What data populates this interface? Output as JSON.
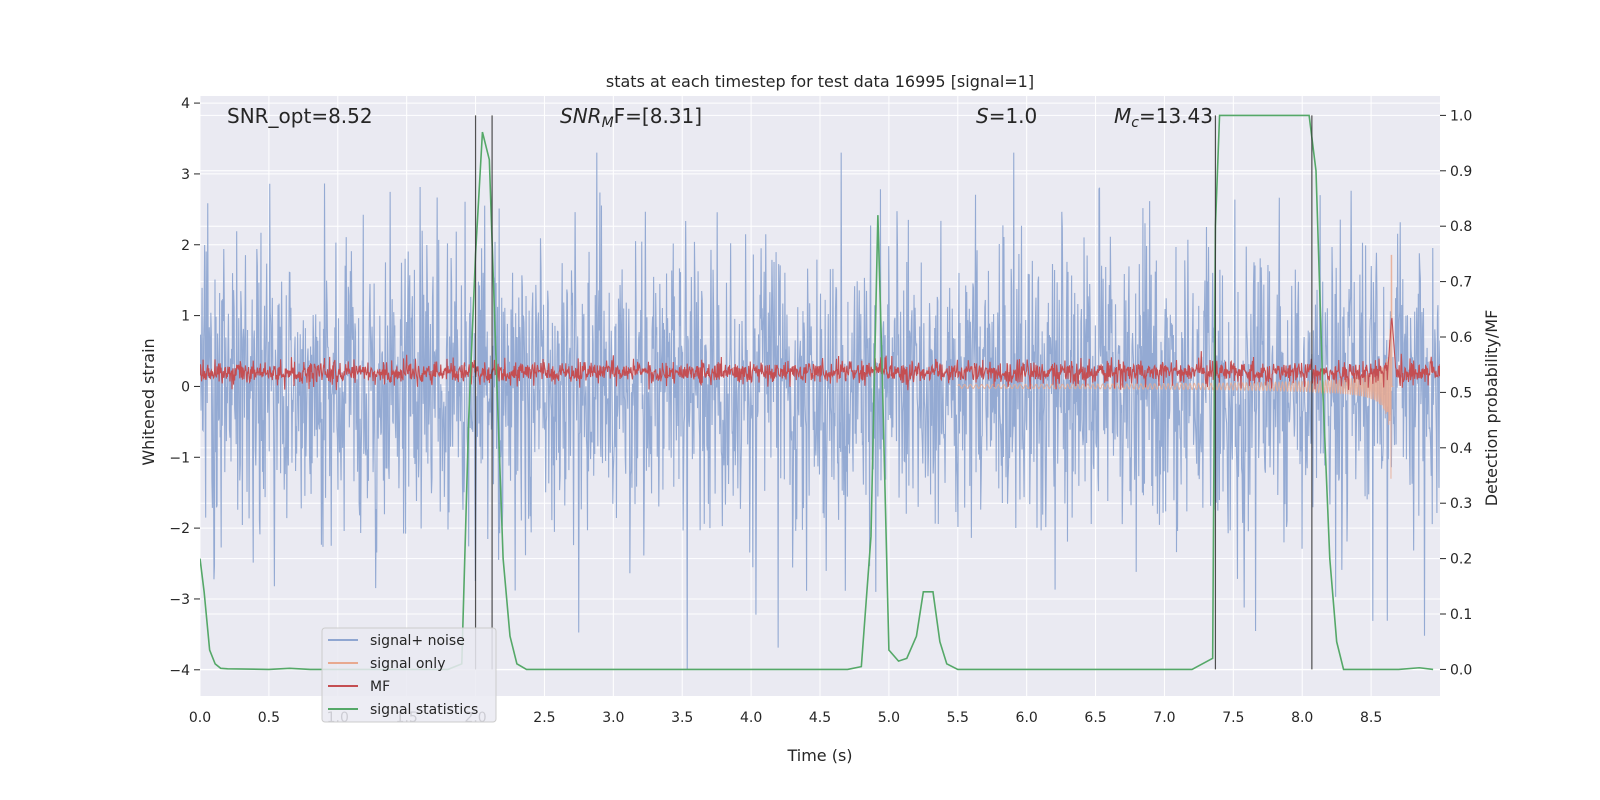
{
  "chart_data": {
    "type": "line",
    "title": "stats at each timestep for test data 16995 [signal=1]",
    "xlabel": "Time (s)",
    "ylabel": "Whitened strain",
    "y2label": "Detection probability/MF",
    "xlim": [
      0.0,
      9.0
    ],
    "ylim": [
      -4.37,
      4.1
    ],
    "y2lim": [
      -0.048,
      1.035
    ],
    "x_ticks": [
      0.0,
      0.5,
      1.0,
      1.5,
      2.0,
      2.5,
      3.0,
      3.5,
      4.0,
      4.5,
      5.0,
      5.5,
      6.0,
      6.5,
      7.0,
      7.5,
      8.0,
      8.5
    ],
    "x_tick_labels": [
      "0.0",
      "0.5",
      "1.0",
      "1.5",
      "2.0",
      "2.5",
      "3.0",
      "3.5",
      "4.0",
      "4.5",
      "5.0",
      "5.5",
      "6.0",
      "6.5",
      "7.0",
      "7.5",
      "8.0",
      "8.5"
    ],
    "y_ticks": [
      4,
      3,
      2,
      1,
      0,
      -1,
      -2,
      -3,
      -4
    ],
    "y_tick_labels": [
      "4",
      "3",
      "2",
      "1",
      "0",
      "−1",
      "−2",
      "−3",
      "−4"
    ],
    "y2_ticks": [
      1.0,
      0.9,
      0.8,
      0.7,
      0.6,
      0.5,
      0.4,
      0.3,
      0.2,
      0.1,
      0.0
    ],
    "y2_tick_labels": [
      "1.0",
      "0.9",
      "0.8",
      "0.7",
      "0.6",
      "0.5",
      "0.4",
      "0.3",
      "0.2",
      "0.1",
      "0.0"
    ],
    "grid": true,
    "legend_position": "lower-left",
    "annotations": {
      "snr_opt": "SNR_opt=8.52",
      "snr_mf_main": "SNR",
      "snr_mf_sub": "M",
      "snr_mf_rest": "F=[8.31]",
      "s_main": "S",
      "s_rest": "=1.0",
      "mc_main": "M",
      "mc_sub": "c",
      "mc_rest": "=13.43"
    },
    "detection_markers_x": [
      2.0,
      2.12,
      7.37,
      8.07
    ],
    "series": [
      {
        "name": "signal+ noise",
        "color": "#8fa6d1",
        "axis": "left",
        "kind": "noise",
        "x_range": [
          0.0,
          9.0
        ],
        "amplitude_std": 1.0,
        "peak_min": -4.0,
        "peak_max": 3.3
      },
      {
        "name": "signal only",
        "color": "#e8a990",
        "axis": "left",
        "kind": "chirp",
        "x_range": [
          5.5,
          8.66
        ],
        "merger_time": 8.65,
        "peak_max": 1.85,
        "peak_min": -1.35
      },
      {
        "name": "MF",
        "color": "#c44e52",
        "axis": "left",
        "kind": "noise-band",
        "x_range": [
          0.0,
          9.0
        ],
        "center": 0.2,
        "band_half_width": 0.15,
        "peak_time": 8.65,
        "peak_value": 1.0
      },
      {
        "name": "signal statistics",
        "color": "#55a868",
        "axis": "right",
        "kind": "line",
        "x": [
          0.0,
          0.03,
          0.07,
          0.11,
          0.15,
          0.2,
          0.5,
          0.65,
          0.8,
          1.8,
          1.9,
          1.95,
          2.0,
          2.05,
          2.1,
          2.15,
          2.2,
          2.25,
          2.3,
          2.37,
          2.45,
          2.5,
          4.7,
          4.8,
          4.87,
          4.92,
          4.95,
          5.0,
          5.07,
          5.13,
          5.2,
          5.25,
          5.32,
          5.37,
          5.42,
          5.5,
          5.6,
          7.2,
          7.35,
          7.37,
          7.4,
          7.45,
          8.05,
          8.1,
          8.15,
          8.2,
          8.25,
          8.3,
          8.4,
          8.5,
          8.7,
          8.85,
          8.95
        ],
        "y": [
          0.2,
          0.14,
          0.035,
          0.01,
          0.002,
          0.001,
          0.0,
          0.002,
          0.0,
          0.0,
          0.01,
          0.45,
          0.75,
          0.97,
          0.92,
          0.55,
          0.2,
          0.06,
          0.01,
          0.0,
          0.0,
          0.0,
          0.0,
          0.005,
          0.24,
          0.82,
          0.55,
          0.035,
          0.015,
          0.02,
          0.06,
          0.14,
          0.14,
          0.05,
          0.01,
          0.0,
          0.0,
          0.0,
          0.02,
          0.8,
          1.0,
          1.0,
          1.0,
          0.9,
          0.5,
          0.2,
          0.05,
          0.0,
          0.0,
          0.0,
          0.0,
          0.003,
          0.0
        ]
      }
    ]
  }
}
